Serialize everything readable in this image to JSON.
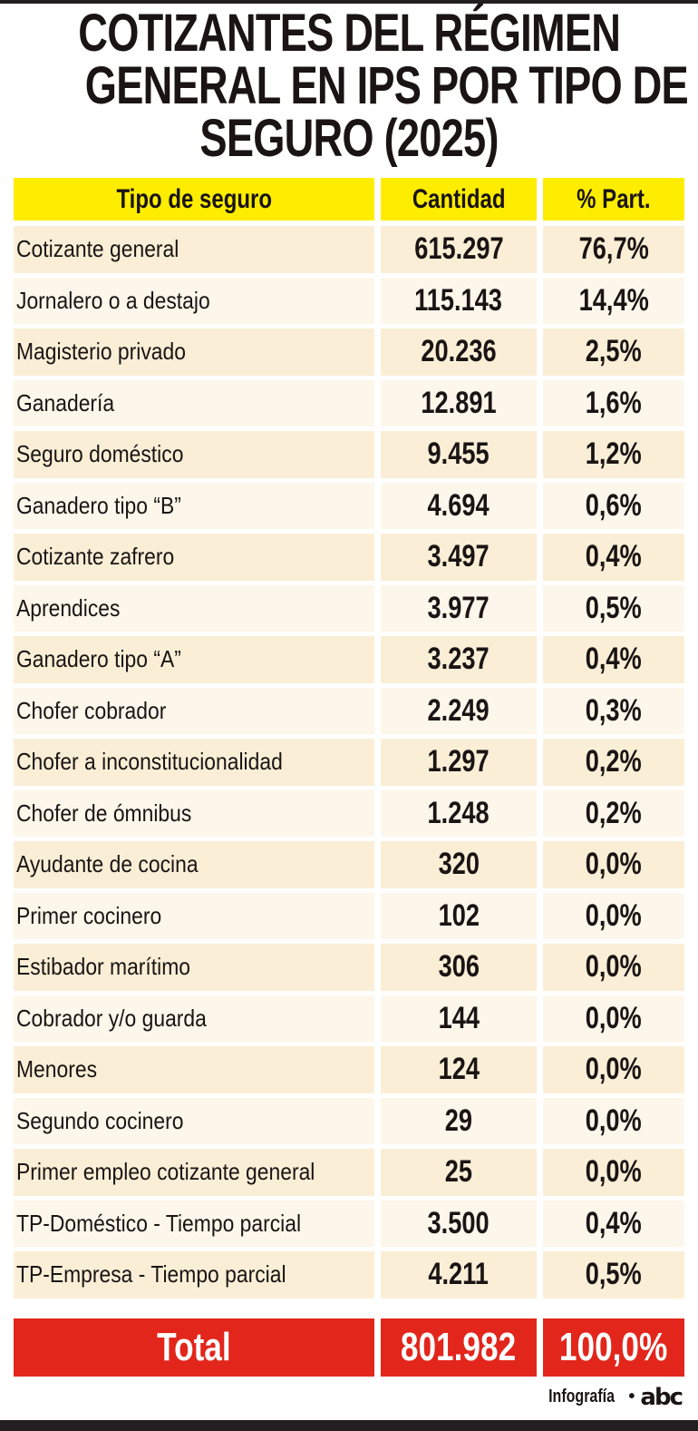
{
  "title_lines": [
    "COTIZANTES DEL RÉGIMEN",
    "GENERAL EN IPS POR TIPO DE",
    "SEGURO (2025)"
  ],
  "colors": {
    "header": "#ffed00",
    "row_odd": "#faefd6",
    "row_even": "#fdf7eb",
    "total": "#e2261c"
  },
  "chart_data": {
    "type": "table",
    "title": "COTIZANTES DEL RÉGIMEN GENERAL EN IPS POR TIPO DE SEGURO (2025)",
    "columns": [
      "Tipo de seguro",
      "Cantidad",
      "% Part."
    ],
    "rows": [
      [
        "Cotizante general",
        "615.297",
        "76,7%"
      ],
      [
        "Jornalero o a destajo",
        "115.143",
        "14,4%"
      ],
      [
        "Magisterio privado",
        "20.236",
        "2,5%"
      ],
      [
        "Ganadería",
        "12.891",
        "1,6%"
      ],
      [
        "Seguro doméstico",
        "9.455",
        "1,2%"
      ],
      [
        "Ganadero tipo “B”",
        "4.694",
        "0,6%"
      ],
      [
        "Cotizante zafrero",
        "3.497",
        "0,4%"
      ],
      [
        "Aprendices",
        "3.977",
        "0,5%"
      ],
      [
        "Ganadero tipo “A”",
        "3.237",
        "0,4%"
      ],
      [
        "Chofer cobrador",
        "2.249",
        "0,3%"
      ],
      [
        "Chofer a inconstitucionalidad",
        "1.297",
        "0,2%"
      ],
      [
        "Chofer de ómnibus",
        "1.248",
        "0,2%"
      ],
      [
        "Ayudante de cocina",
        "320",
        "0,0%"
      ],
      [
        "Primer cocinero",
        "102",
        "0,0%"
      ],
      [
        "Estibador marítimo",
        "306",
        "0,0%"
      ],
      [
        "Cobrador y/o guarda",
        "144",
        "0,0%"
      ],
      [
        "Menores",
        "124",
        "0,0%"
      ],
      [
        "Segundo cocinero",
        "29",
        "0,0%"
      ],
      [
        "Primer empleo cotizante general",
        "25",
        "0,0%"
      ],
      [
        "TP-Doméstico - Tiempo parcial",
        "3.500",
        "0,4%"
      ],
      [
        "TP-Empresa - Tiempo parcial",
        "4.211",
        "0,5%"
      ]
    ],
    "total": [
      "Total",
      "801.982",
      "100,0%"
    ]
  },
  "footer": {
    "credit": "Infografía",
    "separator": "•",
    "logo": "abc color"
  }
}
